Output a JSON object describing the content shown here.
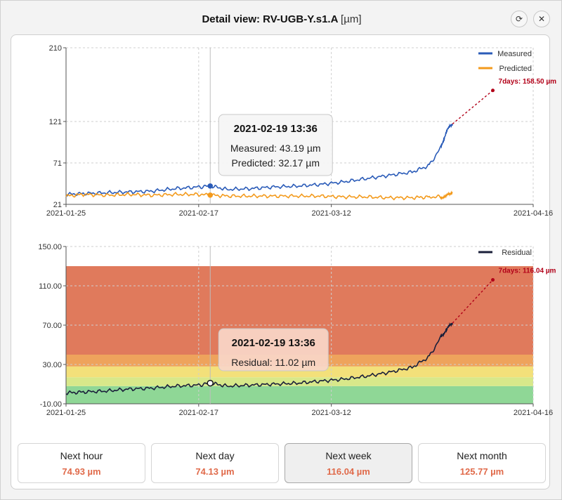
{
  "window": {
    "title": "Detail view: RV-UGB-Y.s1.A",
    "unit": "[µm]",
    "refresh_icon": "refresh-icon",
    "close_icon": "close-icon"
  },
  "colors": {
    "measured": "#2a5bb8",
    "predicted": "#f39a1c",
    "residual": "#1a1f3a",
    "forecast": "#b20018",
    "band_red": "#e07a5c",
    "band_orange": "#eea35c",
    "band_yellow": "#f3e07a",
    "band_green": "#8fd796",
    "tile_value": "#e06a4a"
  },
  "chart_data": [
    {
      "type": "line",
      "x_type": "datetime",
      "x_ticks": [
        "2021-01-25",
        "2021-02-17",
        "2021-03-12",
        "2021-04-16"
      ],
      "xlim": [
        "2021-01-25",
        "2021-04-16"
      ],
      "y_ticks": [
        "21",
        "71",
        "121",
        "210"
      ],
      "ylim": [
        21,
        210
      ],
      "grid": true,
      "legend_position": "top-right",
      "series": [
        {
          "name": "Measured",
          "x": [
            "2021-01-25",
            "2021-01-28",
            "2021-02-01",
            "2021-02-05",
            "2021-02-09",
            "2021-02-13",
            "2021-02-17",
            "2021-02-19",
            "2021-02-22",
            "2021-02-26",
            "2021-03-02",
            "2021-03-06",
            "2021-03-10",
            "2021-03-14",
            "2021-03-18",
            "2021-03-22",
            "2021-03-26",
            "2021-03-29",
            "2021-03-31",
            "2021-04-01",
            "2021-04-02"
          ],
          "values": [
            33,
            34,
            35,
            36,
            37,
            40,
            42,
            43.19,
            39,
            40,
            42,
            43,
            45,
            48,
            52,
            56,
            60,
            68,
            90,
            110,
            118
          ]
        },
        {
          "name": "Predicted",
          "x": [
            "2021-01-25",
            "2021-01-28",
            "2021-02-01",
            "2021-02-05",
            "2021-02-09",
            "2021-02-13",
            "2021-02-17",
            "2021-02-19",
            "2021-02-22",
            "2021-02-26",
            "2021-03-02",
            "2021-03-06",
            "2021-03-10",
            "2021-03-14",
            "2021-03-18",
            "2021-03-22",
            "2021-03-26",
            "2021-03-29",
            "2021-03-31",
            "2021-04-01",
            "2021-04-02"
          ],
          "values": [
            31,
            33,
            32,
            33,
            32,
            33,
            33,
            32.17,
            31,
            31,
            31,
            31,
            31,
            30,
            30,
            29,
            29,
            30,
            30,
            31,
            36
          ]
        }
      ],
      "forecast": {
        "label": "7days: 158.50 µm",
        "from": {
          "x": "2021-04-02",
          "y": 118
        },
        "to": {
          "x": "2021-04-09",
          "y": 158.5
        }
      },
      "tooltip": {
        "title": "2021-02-19 13:36",
        "lines": [
          "Measured: 43.19 µm",
          "Predicted: 32.17 µm"
        ],
        "x": "2021-02-19"
      }
    },
    {
      "type": "line",
      "x_type": "datetime",
      "x_ticks": [
        "2021-01-25",
        "2021-02-17",
        "2021-03-12",
        "2021-04-16"
      ],
      "xlim": [
        "2021-01-25",
        "2021-04-16"
      ],
      "y_ticks": [
        "-10.00",
        "30.00",
        "70.00",
        "110.00",
        "150.00"
      ],
      "ylim": [
        -10,
        150
      ],
      "grid": true,
      "legend_position": "top-right",
      "bands": [
        {
          "from": -10,
          "to": 8,
          "color": "#8fd796"
        },
        {
          "from": 8,
          "to": 17,
          "color": "#d8e88a"
        },
        {
          "from": 17,
          "to": 28,
          "color": "#f3e07a"
        },
        {
          "from": 28,
          "to": 40,
          "color": "#eea35c"
        },
        {
          "from": 40,
          "to": 130,
          "color": "#e07a5c"
        }
      ],
      "series": [
        {
          "name": "Residual",
          "x": [
            "2021-01-25",
            "2021-01-28",
            "2021-02-01",
            "2021-02-05",
            "2021-02-09",
            "2021-02-13",
            "2021-02-17",
            "2021-02-19",
            "2021-02-22",
            "2021-02-26",
            "2021-03-02",
            "2021-03-06",
            "2021-03-10",
            "2021-03-14",
            "2021-03-18",
            "2021-03-22",
            "2021-03-26",
            "2021-03-29",
            "2021-03-31",
            "2021-04-01",
            "2021-04-02"
          ],
          "values": [
            1,
            2,
            3,
            5,
            6,
            8,
            9,
            11.02,
            8,
            9,
            10,
            11,
            13,
            15,
            18,
            22,
            27,
            38,
            58,
            66,
            72
          ]
        }
      ],
      "forecast": {
        "label": "7days: 116.04 µm",
        "from": {
          "x": "2021-04-02",
          "y": 72
        },
        "to": {
          "x": "2021-04-09",
          "y": 116.04
        }
      },
      "tooltip": {
        "title": "2021-02-19 13:36",
        "lines": [
          "Residual: 11.02 µm"
        ],
        "x": "2021-02-19"
      }
    }
  ],
  "tiles": [
    {
      "label": "Next hour",
      "value": "74.93 µm",
      "selected": false
    },
    {
      "label": "Next day",
      "value": "74.13 µm",
      "selected": false
    },
    {
      "label": "Next week",
      "value": "116.04 µm",
      "selected": true
    },
    {
      "label": "Next month",
      "value": "125.77 µm",
      "selected": false
    }
  ]
}
